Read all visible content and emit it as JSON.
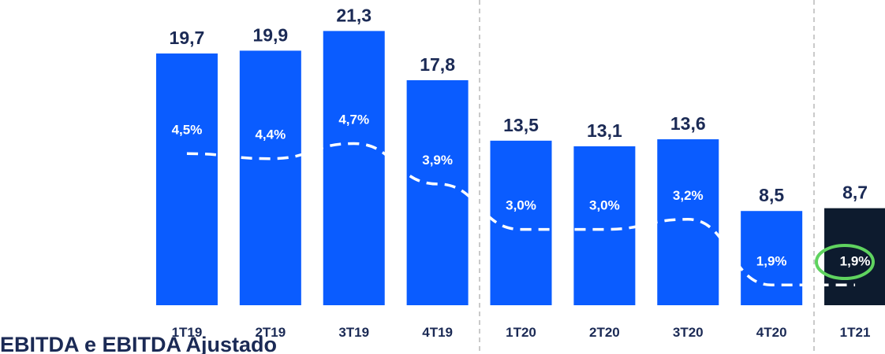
{
  "chart_data": {
    "type": "bar",
    "title": "EBITDA e EBITDA Ajustado",
    "categories": [
      "1T19",
      "2T19",
      "3T19",
      "4T19",
      "1T20",
      "2T20",
      "3T20",
      "4T20",
      "1T21"
    ],
    "series": [
      {
        "type": "bar",
        "values": [
          19.7,
          19.9,
          21.3,
          17.8,
          13.5,
          13.1,
          13.6,
          8.5,
          8.7
        ],
        "value_labels": [
          "19,7",
          "19,9",
          "21,3",
          "17,8",
          "13,5",
          "13,1",
          "13,6",
          "8,5",
          "8,7"
        ],
        "colors": [
          "#0a5cff",
          "#0a5cff",
          "#0a5cff",
          "#0a5cff",
          "#0a5cff",
          "#0a5cff",
          "#0a5cff",
          "#0a5cff",
          "#0d1b2e"
        ]
      },
      {
        "type": "line",
        "axis": "y2",
        "color": "#ffffff",
        "values": [
          4.5,
          4.4,
          4.7,
          3.9,
          3.0,
          3.0,
          3.2,
          1.9,
          1.9
        ],
        "value_labels": [
          "4,5%",
          "4,4%",
          "4,7%",
          "3,9%",
          "3,0%",
          "3,0%",
          "3,2%",
          "1,9%",
          "1,9%"
        ]
      }
    ],
    "ylim": [
      1.8,
      23
    ],
    "y2lim": [
      1.5,
      7.4
    ]
  }
}
